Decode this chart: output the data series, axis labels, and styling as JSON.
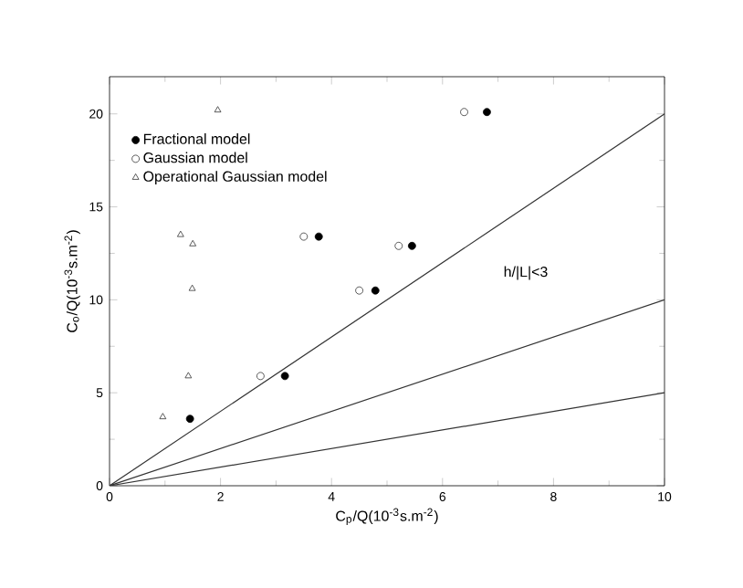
{
  "chart_data": {
    "type": "scatter",
    "xlabel": "C$_{p}$/Q(10$^{-3}$s.m$^{-2}$)",
    "ylabel": "C$_{o}$/Q(10$^{-3}$s.m$^{-2}$)",
    "xlim": [
      0,
      10
    ],
    "ylim": [
      0,
      22
    ],
    "xticks": [
      0,
      2,
      4,
      6,
      8,
      10
    ],
    "yticks": [
      0,
      5,
      10,
      15,
      20
    ],
    "legend": "top left",
    "grid": false,
    "annotations": [
      "h/|L|<3"
    ],
    "series": [
      {
        "name": "Fractional model",
        "color": "#000000",
        "marker": "circle",
        "x": [
          1.45,
          3.16,
          4.79,
          3.77,
          5.45,
          6.8
        ],
        "values": [
          3.6,
          5.9,
          10.5,
          13.4,
          12.9,
          20.1
        ]
      },
      {
        "name": "Gaussian model",
        "color": "#333333",
        "marker": "circle",
        "x": [
          2.72,
          4.5,
          3.5,
          5.21,
          6.39
        ],
        "values": [
          5.9,
          10.5,
          13.4,
          12.9,
          20.1
        ]
      },
      {
        "name": "Operational Gaussian model",
        "color": "#333333",
        "marker": "triangle",
        "x": [
          0.96,
          1.42,
          1.49,
          1.28,
          1.5,
          1.95
        ],
        "values": [
          3.7,
          5.9,
          10.6,
          13.5,
          13.0,
          20.2
        ]
      },
      {
        "type": "line",
        "color": "#333333",
        "marker": "none",
        "x": [
          0,
          10
        ],
        "values": [
          0,
          20
        ]
      },
      {
        "type": "line",
        "color": "#333333",
        "marker": "none",
        "x": [
          0,
          10
        ],
        "values": [
          0,
          10
        ]
      },
      {
        "type": "line",
        "color": "#333333",
        "marker": "none",
        "x": [
          0,
          10
        ],
        "values": [
          0,
          5
        ]
      }
    ]
  }
}
